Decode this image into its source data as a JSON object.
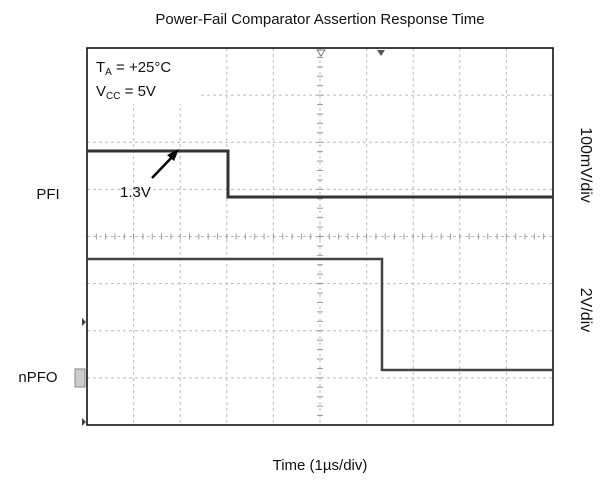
{
  "chart_data": {
    "type": "oscilloscope",
    "title": "Power-Fail Comparator Assertion Response Time",
    "x_label": "Time (1µs/div)",
    "conditions": [
      {
        "symbol": "T",
        "subscript": "A",
        "text": " = +25°C"
      },
      {
        "symbol": "V",
        "subscript": "CC",
        "text": " = 5V"
      }
    ],
    "traces": [
      {
        "name": "PFI",
        "scale": "100mV/div",
        "annotation": "1.3V"
      },
      {
        "name": "nPFO",
        "scale": "2V/div"
      }
    ]
  }
}
